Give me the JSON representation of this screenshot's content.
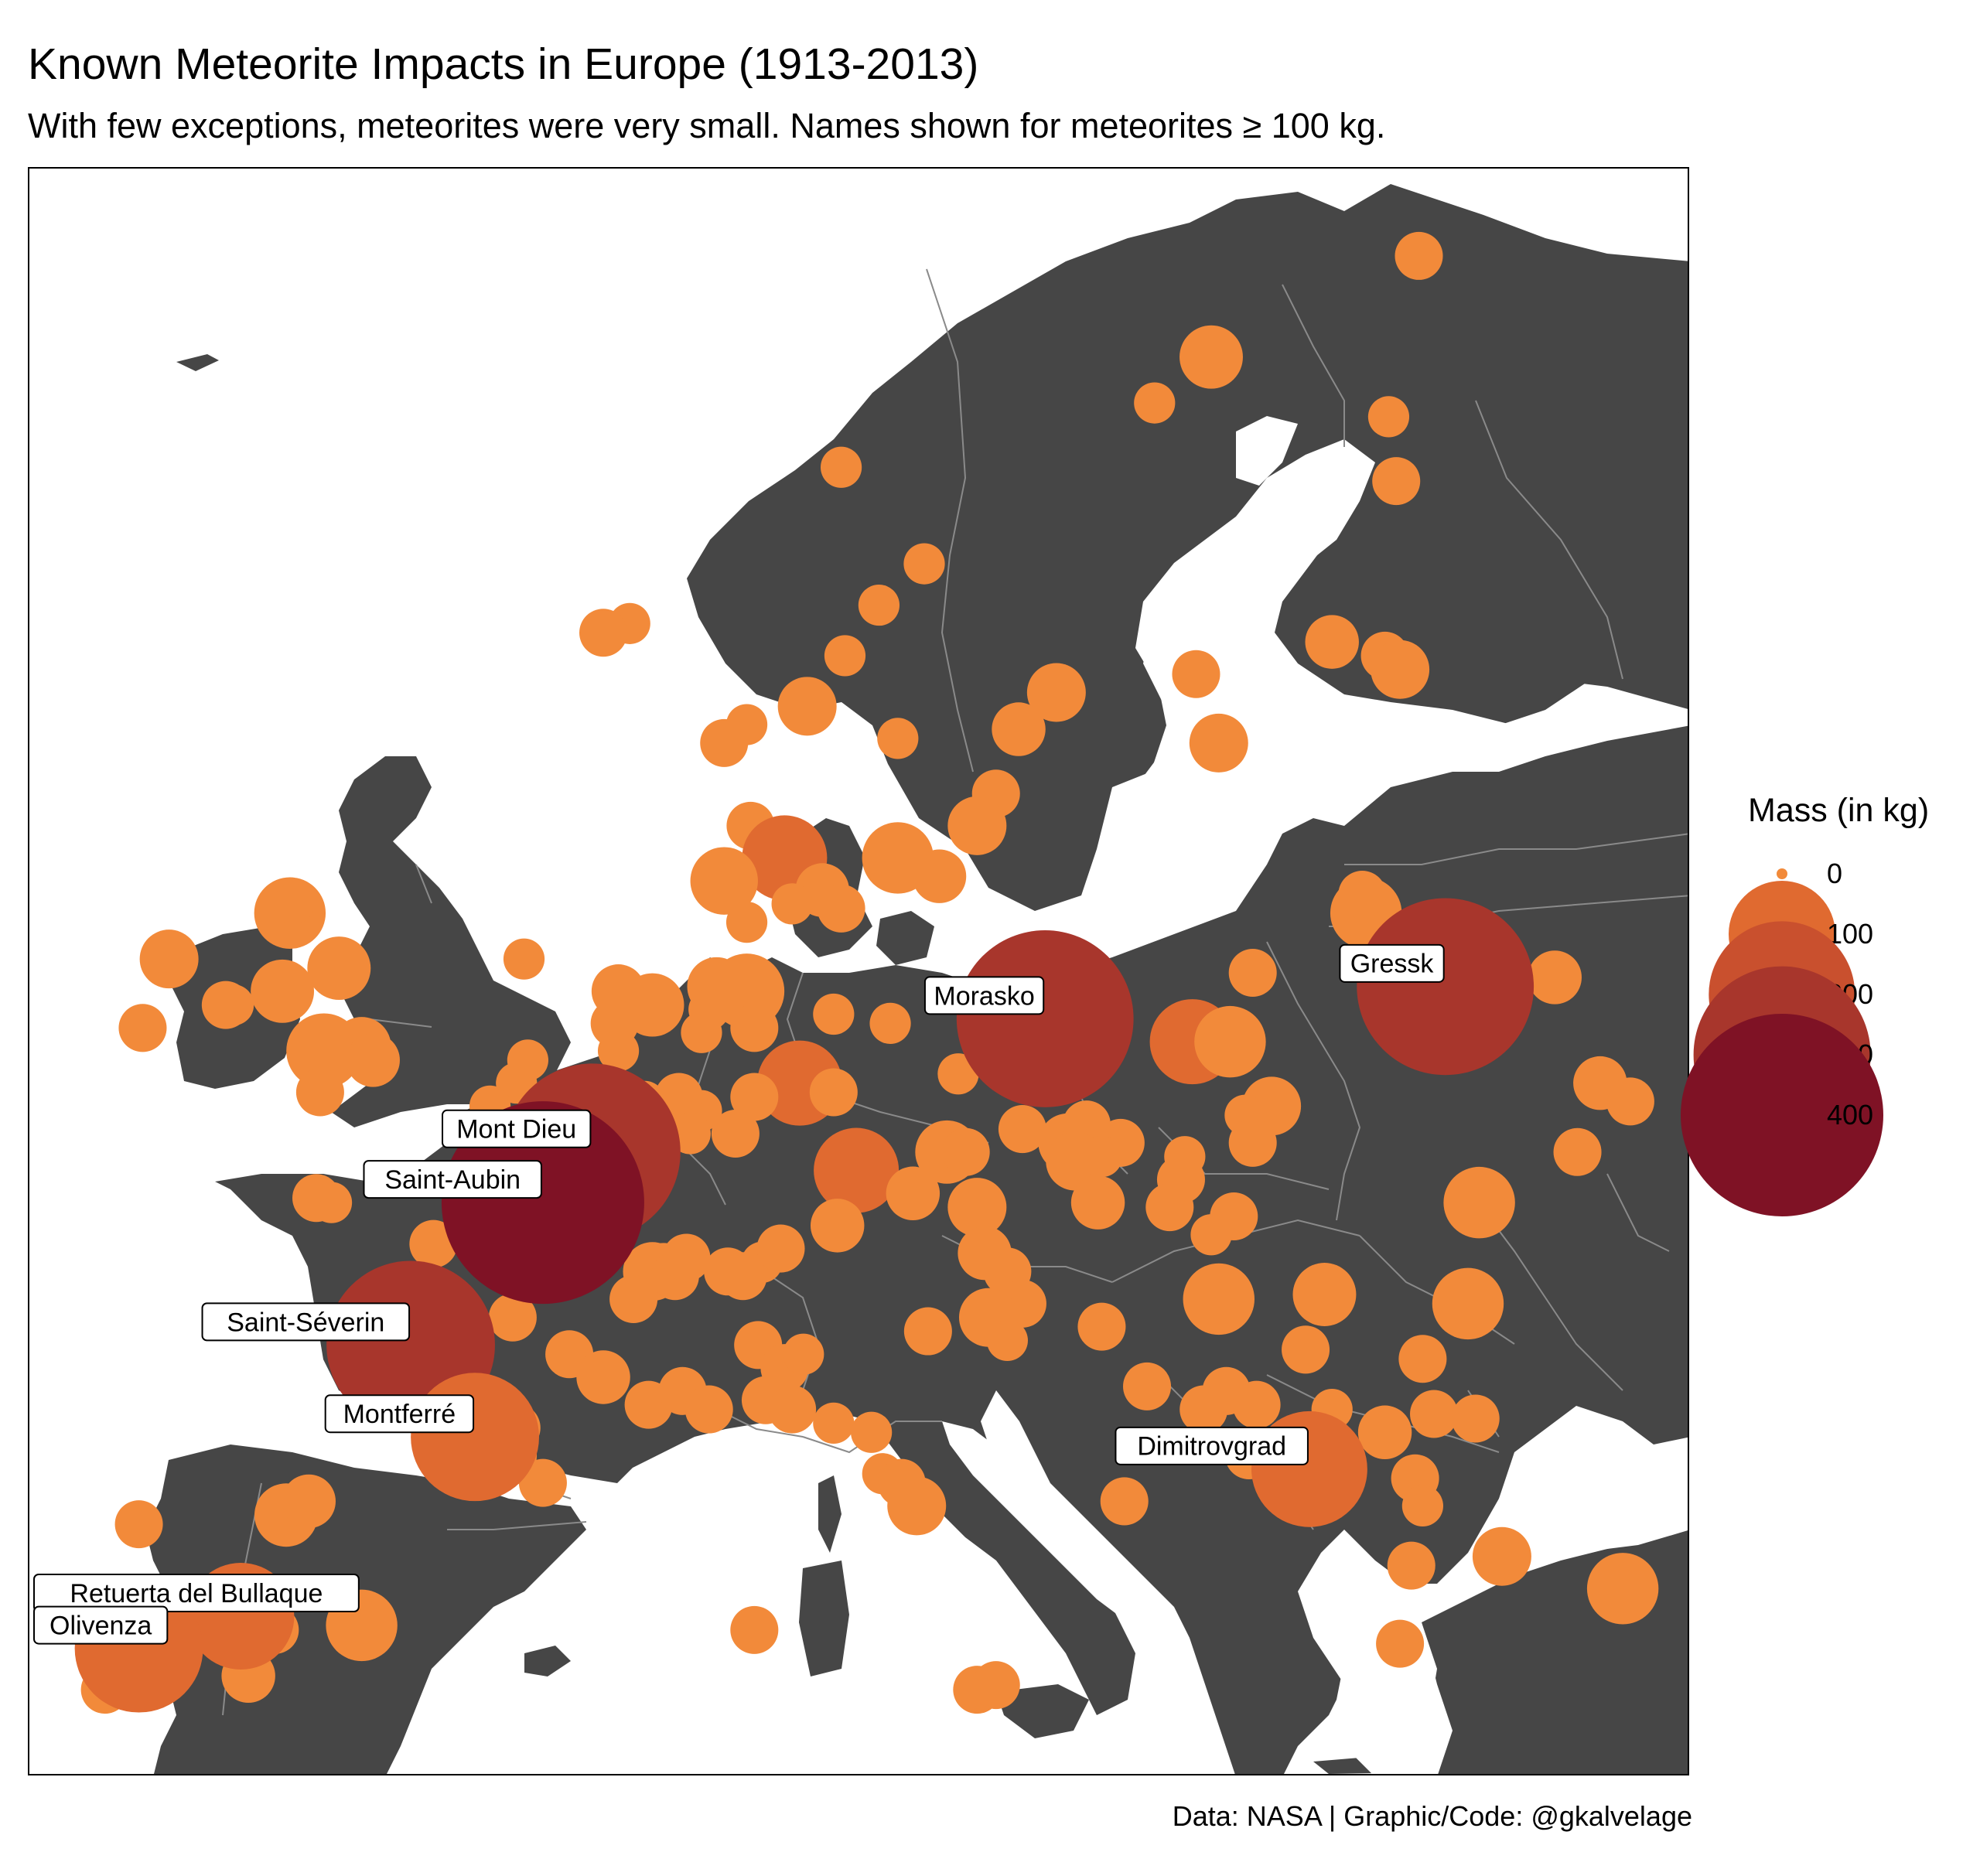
{
  "title": "Known Meteorite Impacts in Europe (1913-2013)",
  "subtitle": "With few exceptions, meteorites were very small. Names shown for meteorites ≥ 100 kg.",
  "caption": "Data: NASA | Graphic/Code: @gkalvelage",
  "legend": {
    "title": "Mass (in kg)",
    "items": [
      {
        "label": "0",
        "mass": 0,
        "color": "#f28a3a"
      },
      {
        "label": "100",
        "mass": 100,
        "color": "#e06a30"
      },
      {
        "label": "200",
        "mass": 200,
        "color": "#c9502e"
      },
      {
        "label": "300",
        "mass": 300,
        "color": "#a8362c"
      },
      {
        "label": "400",
        "mass": 400,
        "color": "#7f1225"
      }
    ]
  },
  "colors": {
    "land": "#464646",
    "water": "#ffffff",
    "borders": "#8a8a8a",
    "label_bg": "#ffffff"
  },
  "chart_data": {
    "type": "scatter",
    "x_label": "longitude",
    "y_label": "latitude",
    "xlim": [
      -10,
      34
    ],
    "ylim": [
      36,
      71
    ],
    "grid": false,
    "legend_position": "right",
    "labeled_meteorites": [
      {
        "name": "Gressk",
        "lon": 27.5,
        "lat": 53.2,
        "mass": 300
      },
      {
        "name": "Morasko",
        "lon": 16.9,
        "lat": 52.5,
        "mass": 300
      },
      {
        "name": "Mont Dieu",
        "lon": 4.9,
        "lat": 49.6,
        "mass": 300
      },
      {
        "name": "Saint-Aubin",
        "lon": 3.6,
        "lat": 48.5,
        "mass": 400
      },
      {
        "name": "Saint-Séverin",
        "lon": 0.1,
        "lat": 45.4,
        "mass": 270
      },
      {
        "name": "Montferré",
        "lon": 1.8,
        "lat": 43.4,
        "mass": 150
      },
      {
        "name": "Dimitrovgrad",
        "lon": 23.9,
        "lat": 42.7,
        "mass": 120
      },
      {
        "name": "Retuerta del Bullaque",
        "lon": -4.4,
        "lat": 39.5,
        "mass": 100
      },
      {
        "name": "Olivenza",
        "lon": -7.1,
        "lat": 38.8,
        "mass": 150
      }
    ],
    "points": [
      {
        "lon": 21.3,
        "lat": 66.9,
        "mass": 30
      },
      {
        "lon": 26.8,
        "lat": 69.1,
        "mass": 15
      },
      {
        "lon": 19.8,
        "lat": 65.9,
        "mass": 10
      },
      {
        "lon": 26.0,
        "lat": 65.6,
        "mass": 10
      },
      {
        "lon": 26.2,
        "lat": 64.2,
        "mass": 15
      },
      {
        "lon": 11.5,
        "lat": 64.5,
        "mass": 10
      },
      {
        "lon": 13.7,
        "lat": 62.4,
        "mass": 10
      },
      {
        "lon": 12.5,
        "lat": 61.5,
        "mass": 10
      },
      {
        "lon": 5.9,
        "lat": 61.1,
        "mass": 10
      },
      {
        "lon": 5.2,
        "lat": 60.9,
        "mass": 15
      },
      {
        "lon": 11.6,
        "lat": 60.4,
        "mass": 10
      },
      {
        "lon": 24.5,
        "lat": 60.7,
        "mass": 20
      },
      {
        "lon": 25.9,
        "lat": 60.4,
        "mass": 15
      },
      {
        "lon": 26.3,
        "lat": 60.1,
        "mass": 25
      },
      {
        "lon": 20.9,
        "lat": 60.0,
        "mass": 15
      },
      {
        "lon": 17.2,
        "lat": 59.6,
        "mass": 25
      },
      {
        "lon": 10.6,
        "lat": 59.3,
        "mass": 25
      },
      {
        "lon": 9.0,
        "lat": 58.9,
        "mass": 10
      },
      {
        "lon": 8.4,
        "lat": 58.5,
        "mass": 15
      },
      {
        "lon": 13.0,
        "lat": 58.6,
        "mass": 10
      },
      {
        "lon": 16.2,
        "lat": 58.8,
        "mass": 20
      },
      {
        "lon": 15.6,
        "lat": 57.4,
        "mass": 15
      },
      {
        "lon": 21.5,
        "lat": 58.5,
        "mass": 25
      },
      {
        "lon": 15.1,
        "lat": 56.7,
        "mass": 25
      },
      {
        "lon": 13.0,
        "lat": 56.0,
        "mass": 40
      },
      {
        "lon": 14.1,
        "lat": 55.6,
        "mass": 20
      },
      {
        "lon": 9.1,
        "lat": 56.7,
        "mass": 15
      },
      {
        "lon": 10.0,
        "lat": 56.0,
        "mass": 60
      },
      {
        "lon": 11.0,
        "lat": 55.3,
        "mass": 20
      },
      {
        "lon": 8.4,
        "lat": 55.5,
        "mass": 35
      },
      {
        "lon": 10.2,
        "lat": 55.0,
        "mass": 10
      },
      {
        "lon": 11.5,
        "lat": 54.9,
        "mass": 15
      },
      {
        "lon": 9.0,
        "lat": 54.6,
        "mass": 10
      },
      {
        "lon": 25.4,
        "lat": 54.8,
        "mass": 40
      },
      {
        "lon": 25.3,
        "lat": 55.2,
        "mass": 15
      },
      {
        "lon": 30.4,
        "lat": 53.4,
        "mass": 20
      },
      {
        "lon": 22.4,
        "lat": 53.5,
        "mass": 15
      },
      {
        "lon": 20.8,
        "lat": 52.0,
        "mass": 60
      },
      {
        "lon": 21.8,
        "lat": 52.0,
        "mass": 40
      },
      {
        "lon": 31.6,
        "lat": 51.1,
        "mass": 20
      },
      {
        "lon": 32.4,
        "lat": 50.7,
        "mass": 15
      },
      {
        "lon": 22.9,
        "lat": 50.6,
        "mass": 25
      },
      {
        "lon": 22.2,
        "lat": 50.4,
        "mass": 10
      },
      {
        "lon": 22.4,
        "lat": 49.8,
        "mass": 15
      },
      {
        "lon": 31.0,
        "lat": 49.6,
        "mass": 15
      },
      {
        "lon": 14.6,
        "lat": 51.3,
        "mass": 10
      },
      {
        "lon": 12.8,
        "lat": 52.4,
        "mass": 10
      },
      {
        "lon": 11.3,
        "lat": 52.6,
        "mass": 10
      },
      {
        "lon": 9.2,
        "lat": 52.9,
        "mass": 10
      },
      {
        "lon": 8.2,
        "lat": 53.2,
        "mass": 25
      },
      {
        "lon": 9.0,
        "lat": 53.1,
        "mass": 45
      },
      {
        "lon": 7.8,
        "lat": 52.2,
        "mass": 10
      },
      {
        "lon": 8.0,
        "lat": 52.7,
        "mass": 10
      },
      {
        "lon": 9.2,
        "lat": 52.3,
        "mass": 15
      },
      {
        "lon": 10.4,
        "lat": 51.1,
        "mass": 60
      },
      {
        "lon": 11.3,
        "lat": 50.9,
        "mass": 15
      },
      {
        "lon": 9.2,
        "lat": 50.8,
        "mass": 15
      },
      {
        "lon": 7.8,
        "lat": 50.5,
        "mass": 10
      },
      {
        "lon": 7.2,
        "lat": 50.8,
        "mass": 15
      },
      {
        "lon": 8.7,
        "lat": 50.0,
        "mass": 15
      },
      {
        "lon": 6.3,
        "lat": 50.7,
        "mass": 10
      },
      {
        "lon": 6.5,
        "lat": 50.1,
        "mass": 15
      },
      {
        "lon": 7.5,
        "lat": 50.0,
        "mass": 10
      },
      {
        "lon": 11.9,
        "lat": 49.2,
        "mass": 60
      },
      {
        "lon": 16.3,
        "lat": 50.1,
        "mass": 15
      },
      {
        "lon": 17.5,
        "lat": 49.8,
        "mass": 25
      },
      {
        "lon": 18.0,
        "lat": 50.2,
        "mass": 15
      },
      {
        "lon": 18.9,
        "lat": 49.8,
        "mass": 15
      },
      {
        "lon": 14.3,
        "lat": 49.6,
        "mass": 30
      },
      {
        "lon": 14.8,
        "lat": 49.6,
        "mass": 15
      },
      {
        "lon": 17.7,
        "lat": 49.4,
        "mass": 25
      },
      {
        "lon": 18.4,
        "lat": 49.5,
        "mass": 10
      },
      {
        "lon": 20.6,
        "lat": 49.5,
        "mass": 10
      },
      {
        "lon": 20.5,
        "lat": 49.0,
        "mass": 15
      },
      {
        "lon": 13.4,
        "lat": 48.7,
        "mass": 20
      },
      {
        "lon": 15.1,
        "lat": 48.4,
        "mass": 25
      },
      {
        "lon": 18.3,
        "lat": 48.5,
        "mass": 20
      },
      {
        "lon": 20.2,
        "lat": 48.4,
        "mass": 15
      },
      {
        "lon": 11.4,
        "lat": 48.0,
        "mass": 20
      },
      {
        "lon": 21.9,
        "lat": 48.2,
        "mass": 15
      },
      {
        "lon": 21.3,
        "lat": 47.8,
        "mass": 10
      },
      {
        "lon": 15.3,
        "lat": 47.4,
        "mass": 20
      },
      {
        "lon": 15.9,
        "lat": 47.0,
        "mass": 15
      },
      {
        "lon": 16.3,
        "lat": 46.3,
        "mass": 15
      },
      {
        "lon": 15.4,
        "lat": 46.0,
        "mass": 25
      },
      {
        "lon": 15.9,
        "lat": 45.5,
        "mass": 10
      },
      {
        "lon": 13.8,
        "lat": 45.7,
        "mass": 15
      },
      {
        "lon": 18.4,
        "lat": 45.8,
        "mass": 15
      },
      {
        "lon": 21.5,
        "lat": 46.4,
        "mass": 40
      },
      {
        "lon": 24.3,
        "lat": 46.5,
        "mass": 30
      },
      {
        "lon": 28.4,
        "lat": 48.5,
        "mass": 40
      },
      {
        "lon": 28.1,
        "lat": 46.3,
        "mass": 40
      },
      {
        "lon": 23.8,
        "lat": 45.3,
        "mass": 15
      },
      {
        "lon": 26.9,
        "lat": 45.1,
        "mass": 15
      },
      {
        "lon": 21.7,
        "lat": 44.4,
        "mass": 15
      },
      {
        "lon": 19.6,
        "lat": 44.5,
        "mass": 15
      },
      {
        "lon": 21.1,
        "lat": 44.0,
        "mass": 15
      },
      {
        "lon": 22.5,
        "lat": 44.1,
        "mass": 15
      },
      {
        "lon": 24.5,
        "lat": 44.0,
        "mass": 10
      },
      {
        "lon": 27.2,
        "lat": 43.9,
        "mass": 15
      },
      {
        "lon": 28.3,
        "lat": 43.8,
        "mass": 15
      },
      {
        "lon": 25.9,
        "lat": 43.5,
        "mass": 20
      },
      {
        "lon": 22.3,
        "lat": 43.0,
        "mass": 15
      },
      {
        "lon": 26.7,
        "lat": 42.5,
        "mass": 15
      },
      {
        "lon": 19.0,
        "lat": 42.0,
        "mass": 15
      },
      {
        "lon": 26.9,
        "lat": 41.9,
        "mass": 10
      },
      {
        "lon": 26.6,
        "lat": 40.6,
        "mass": 15
      },
      {
        "lon": 29.0,
        "lat": 40.8,
        "mass": 25
      },
      {
        "lon": 32.2,
        "lat": 40.1,
        "mass": 40
      },
      {
        "lon": 26.3,
        "lat": 38.9,
        "mass": 15
      },
      {
        "lon": 3.1,
        "lat": 53.8,
        "mass": 10
      },
      {
        "lon": 5.6,
        "lat": 53.1,
        "mass": 20
      },
      {
        "lon": 6.5,
        "lat": 52.8,
        "mass": 30
      },
      {
        "lon": 5.5,
        "lat": 52.4,
        "mass": 15
      },
      {
        "lon": 5.6,
        "lat": 51.8,
        "mass": 10
      },
      {
        "lon": 2.9,
        "lat": 51.1,
        "mass": 10
      },
      {
        "lon": 3.2,
        "lat": 51.6,
        "mass": 10
      },
      {
        "lon": 2.2,
        "lat": 50.6,
        "mass": 10
      },
      {
        "lon": 3.3,
        "lat": 49.1,
        "mass": 10
      },
      {
        "lon": -2.4,
        "lat": 48.6,
        "mass": 15
      },
      {
        "lon": -2.0,
        "lat": 48.5,
        "mass": 10
      },
      {
        "lon": 0.7,
        "lat": 47.6,
        "mass": 15
      },
      {
        "lon": 6.5,
        "lat": 47.0,
        "mass": 25
      },
      {
        "lon": 6.8,
        "lat": 47.1,
        "mass": 15
      },
      {
        "lon": 7.1,
        "lat": 46.9,
        "mass": 15
      },
      {
        "lon": 7.4,
        "lat": 47.3,
        "mass": 15
      },
      {
        "lon": 8.5,
        "lat": 47.0,
        "mass": 15
      },
      {
        "lon": 8.9,
        "lat": 46.9,
        "mass": 15
      },
      {
        "lon": 9.4,
        "lat": 47.2,
        "mass": 10
      },
      {
        "lon": 9.9,
        "lat": 47.5,
        "mass": 15
      },
      {
        "lon": 6.0,
        "lat": 46.4,
        "mass": 15
      },
      {
        "lon": 2.8,
        "lat": 46.0,
        "mass": 15
      },
      {
        "lon": 4.3,
        "lat": 45.2,
        "mass": 15
      },
      {
        "lon": 5.2,
        "lat": 44.7,
        "mass": 20
      },
      {
        "lon": 6.4,
        "lat": 44.1,
        "mass": 15
      },
      {
        "lon": 7.3,
        "lat": 44.4,
        "mass": 15
      },
      {
        "lon": 8.0,
        "lat": 44.0,
        "mass": 15
      },
      {
        "lon": 9.3,
        "lat": 45.4,
        "mass": 15
      },
      {
        "lon": 10.0,
        "lat": 44.9,
        "mass": 15
      },
      {
        "lon": 10.5,
        "lat": 45.2,
        "mass": 10
      },
      {
        "lon": 9.5,
        "lat": 44.2,
        "mass": 15
      },
      {
        "lon": 10.2,
        "lat": 44.0,
        "mass": 15
      },
      {
        "lon": 11.3,
        "lat": 43.7,
        "mass": 10
      },
      {
        "lon": 12.3,
        "lat": 43.5,
        "mass": 10
      },
      {
        "lon": 12.6,
        "lat": 42.6,
        "mass": 10
      },
      {
        "lon": 13.1,
        "lat": 42.4,
        "mass": 15
      },
      {
        "lon": 13.5,
        "lat": 41.9,
        "mass": 25
      },
      {
        "lon": 9.2,
        "lat": 39.2,
        "mass": 15
      },
      {
        "lon": 15.1,
        "lat": 37.9,
        "mass": 15
      },
      {
        "lon": 15.6,
        "lat": 38.0,
        "mass": 15
      },
      {
        "lon": 2.9,
        "lat": 43.6,
        "mass": 15
      },
      {
        "lon": 2.6,
        "lat": 43.0,
        "mass": 30
      },
      {
        "lon": 3.6,
        "lat": 42.4,
        "mass": 15
      },
      {
        "lon": -3.2,
        "lat": 41.7,
        "mass": 30
      },
      {
        "lon": -2.6,
        "lat": 42.0,
        "mass": 20
      },
      {
        "lon": -7.1,
        "lat": 41.5,
        "mass": 15
      },
      {
        "lon": -1.2,
        "lat": 39.3,
        "mass": 40
      },
      {
        "lon": -3.5,
        "lat": 39.2,
        "mass": 15
      },
      {
        "lon": -4.2,
        "lat": 38.2,
        "mass": 20
      },
      {
        "lon": -8.0,
        "lat": 37.9,
        "mass": 15
      },
      {
        "lon": -3.1,
        "lat": 54.8,
        "mass": 40
      },
      {
        "lon": -3.0,
        "lat": 55.0,
        "mass": 10
      },
      {
        "lon": -1.8,
        "lat": 53.6,
        "mass": 30
      },
      {
        "lon": -3.3,
        "lat": 53.1,
        "mass": 30
      },
      {
        "lon": -6.3,
        "lat": 53.8,
        "mass": 25
      },
      {
        "lon": -4.8,
        "lat": 52.8,
        "mass": 15
      },
      {
        "lon": -4.6,
        "lat": 52.8,
        "mass": 10
      },
      {
        "lon": -7.0,
        "lat": 52.3,
        "mass": 15
      },
      {
        "lon": -2.2,
        "lat": 51.8,
        "mass": 45
      },
      {
        "lon": -1.2,
        "lat": 51.9,
        "mass": 25
      },
      {
        "lon": -0.9,
        "lat": 51.6,
        "mass": 20
      },
      {
        "lon": -2.3,
        "lat": 50.9,
        "mass": 15
      }
    ]
  }
}
